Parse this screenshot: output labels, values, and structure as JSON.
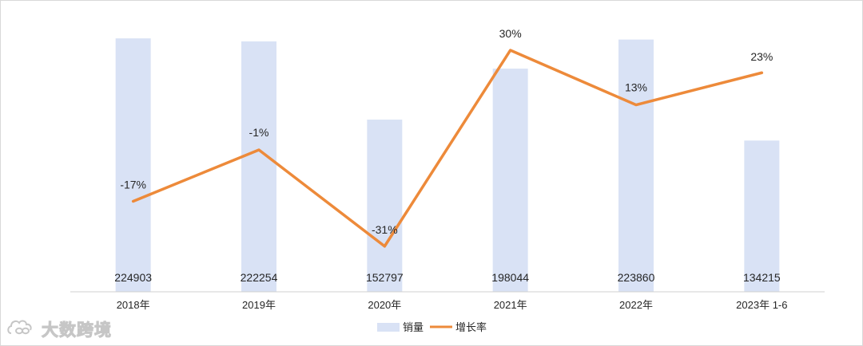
{
  "chart_data": {
    "type": "bar",
    "categories": [
      "2018年",
      "2019年",
      "2020年",
      "2021年",
      "2022年",
      "2023年 1-6"
    ],
    "series": [
      {
        "name": "销量",
        "type": "bar",
        "color": "#d9e2f5",
        "values": [
          224903,
          222254,
          152797,
          198044,
          223860,
          134215
        ],
        "labels": [
          "224903",
          "222254",
          "152797",
          "198044",
          "223860",
          "134215"
        ]
      },
      {
        "name": "增长率",
        "type": "line",
        "color": "#ed8a3a",
        "values": [
          -17,
          -1,
          -31,
          30,
          13,
          23
        ],
        "labels": [
          "-17%",
          "-1%",
          "-31%",
          "30%",
          "13%",
          "23%"
        ]
      }
    ],
    "ylim_bar": [
      0,
      225000
    ],
    "ylim_line": [
      -35,
      31
    ],
    "grid": false,
    "legend_position": "bottom"
  },
  "watermark": {
    "text": "大数跨境",
    "icon": "cloud-infinity-logo-icon"
  }
}
